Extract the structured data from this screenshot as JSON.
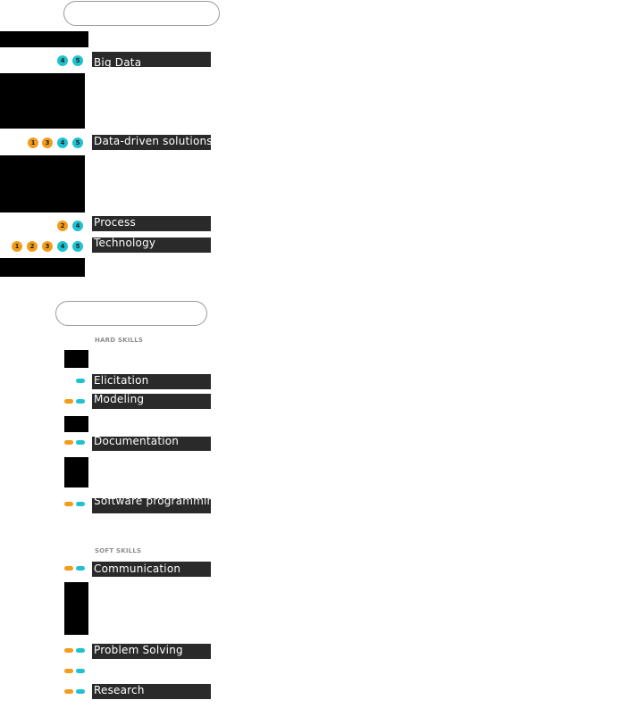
{
  "labels": {
    "big_data": "Big Data",
    "data_driven": "Data-driven solutions",
    "process": "Process",
    "technology": "Technology",
    "elicitation": "Elicitation",
    "modeling": "Modeling",
    "documentation": "Documentation",
    "software_programming": "Software programming",
    "communication": "Communication",
    "problem_solving": "Problem Solving",
    "research": "Research"
  },
  "sections": {
    "hard_skills": "HARD SKILLS",
    "soft_skills": "SOFT SKILLS"
  },
  "badges": {
    "big_data": [
      "4",
      "5"
    ],
    "data_driven": [
      "1",
      "3",
      "4",
      "5"
    ],
    "process": [
      "2",
      "4"
    ],
    "technology": [
      "1",
      "2",
      "3",
      "4",
      "5"
    ]
  },
  "colors": {
    "orange": "#f39c1a",
    "cyan": "#1ec2d0",
    "label_bg": "#2a2a2a"
  }
}
